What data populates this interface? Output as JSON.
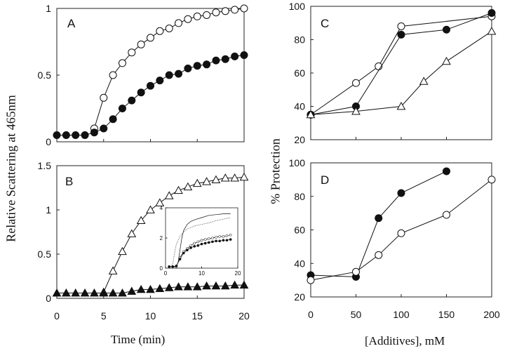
{
  "chart_data": [
    {
      "panel": "A",
      "type": "line",
      "xlim": [
        0,
        20
      ],
      "ylim": [
        0,
        1
      ],
      "xticks": [
        0,
        5,
        10,
        15,
        20
      ],
      "xticklabels": [],
      "yticks": [
        0,
        0.5,
        1
      ],
      "yticklabels": [
        "0",
        "0.5",
        "1"
      ],
      "series": [
        {
          "name": "open circles",
          "marker": "circle-open",
          "x": [
            4,
            5,
            6,
            7,
            8,
            9,
            10,
            11,
            12,
            13,
            14,
            15,
            16,
            17,
            18,
            19,
            20
          ],
          "y": [
            0.1,
            0.33,
            0.5,
            0.59,
            0.67,
            0.73,
            0.78,
            0.83,
            0.85,
            0.89,
            0.92,
            0.94,
            0.95,
            0.97,
            0.98,
            0.99,
            1.0
          ]
        },
        {
          "name": "filled circles",
          "marker": "circle-filled",
          "x": [
            0,
            1,
            2,
            3,
            4,
            5,
            6,
            7,
            8,
            9,
            10,
            11,
            12,
            13,
            14,
            15,
            16,
            17,
            18,
            19,
            20
          ],
          "y": [
            0.05,
            0.05,
            0.05,
            0.05,
            0.07,
            0.1,
            0.17,
            0.25,
            0.31,
            0.37,
            0.42,
            0.46,
            0.5,
            0.51,
            0.55,
            0.57,
            0.58,
            0.61,
            0.62,
            0.64,
            0.65
          ]
        }
      ]
    },
    {
      "panel": "B",
      "type": "line",
      "xlim": [
        0,
        20
      ],
      "ylim": [
        0,
        1.5
      ],
      "xticks": [
        0,
        5,
        10,
        15,
        20
      ],
      "xticklabels": [
        "0",
        "5",
        "10",
        "15",
        "20"
      ],
      "yticks": [
        0,
        0.5,
        1,
        1.5
      ],
      "yticklabels": [
        "0",
        "0.5",
        "1",
        "1.5"
      ],
      "series": [
        {
          "name": "open triangles",
          "marker": "triangle-open",
          "x": [
            5,
            6,
            7,
            8,
            9,
            10,
            11,
            12,
            13,
            14,
            15,
            16,
            17,
            18,
            19,
            20
          ],
          "y": [
            0.07,
            0.31,
            0.53,
            0.73,
            0.88,
            1.0,
            1.08,
            1.16,
            1.22,
            1.26,
            1.3,
            1.32,
            1.34,
            1.36,
            1.36,
            1.37
          ]
        },
        {
          "name": "filled triangles",
          "marker": "triangle-filled",
          "x": [
            0,
            1,
            2,
            3,
            4,
            5,
            6,
            7,
            8,
            9,
            10,
            11,
            12,
            13,
            14,
            15,
            16,
            17,
            18,
            19,
            20
          ],
          "y": [
            0.06,
            0.06,
            0.06,
            0.06,
            0.06,
            0.06,
            0.06,
            0.06,
            0.08,
            0.1,
            0.1,
            0.11,
            0.12,
            0.13,
            0.13,
            0.13,
            0.14,
            0.14,
            0.14,
            0.15,
            0.15
          ]
        }
      ],
      "inset": {
        "xlim": [
          0,
          20
        ],
        "ylim": [
          0,
          4
        ],
        "xticks": [
          0,
          10,
          20
        ],
        "xticklabels": [
          "0",
          "10",
          "20"
        ],
        "yticks": [
          0,
          2,
          4
        ],
        "yticklabels": [
          "0",
          "2",
          "4"
        ],
        "series": [
          {
            "name": "solid line",
            "marker": "none",
            "style": "solid",
            "x": [
              1,
              2,
              3,
              3.5,
              4,
              4.5,
              5,
              6,
              7,
              8,
              10,
              12,
              14,
              16,
              18
            ],
            "y": [
              0.1,
              0.1,
              0.1,
              0.4,
              1.2,
              2.0,
              2.5,
              2.9,
              3.1,
              3.2,
              3.35,
              3.5,
              3.55,
              3.6,
              3.6
            ]
          },
          {
            "name": "dotted line",
            "marker": "none",
            "style": "dotted",
            "x": [
              1,
              1.5,
              2,
              2.5,
              3,
              4,
              5,
              6,
              8,
              10,
              12,
              14,
              16,
              18
            ],
            "y": [
              0.1,
              0.1,
              0.3,
              1.0,
              1.6,
              2.1,
              2.4,
              2.6,
              2.8,
              2.9,
              3.0,
              3.15,
              3.25,
              3.35
            ]
          },
          {
            "name": "open circles",
            "marker": "circle-open",
            "style": "solid",
            "x": [
              1,
              2,
              3,
              4,
              5,
              6,
              7,
              8,
              9,
              10,
              11,
              12,
              13,
              14,
              15,
              16,
              17,
              18
            ],
            "y": [
              0.1,
              0.1,
              0.1,
              0.7,
              1.1,
              1.3,
              1.5,
              1.65,
              1.75,
              1.85,
              1.9,
              1.95,
              2.0,
              2.05,
              2.1,
              2.1,
              2.15,
              2.2
            ]
          },
          {
            "name": "filled circles",
            "marker": "circle-filled",
            "style": "solid",
            "x": [
              1,
              2,
              3,
              4,
              5,
              6,
              7,
              8,
              9,
              10,
              11,
              12,
              13,
              14,
              15,
              16,
              17,
              18
            ],
            "y": [
              0.1,
              0.1,
              0.15,
              0.6,
              1.0,
              1.2,
              1.35,
              1.45,
              1.5,
              1.6,
              1.65,
              1.7,
              1.75,
              1.8,
              1.8,
              1.85,
              1.85,
              1.9
            ]
          }
        ]
      }
    },
    {
      "panel": "C",
      "type": "line",
      "xlim": [
        0,
        200
      ],
      "ylim": [
        20,
        100
      ],
      "xticks": [
        0,
        50,
        100,
        150,
        200
      ],
      "xticklabels": [],
      "yticks": [
        20,
        40,
        60,
        80,
        100
      ],
      "yticklabels": [
        "20",
        "40",
        "60",
        "80",
        "100"
      ],
      "series": [
        {
          "name": "open circles",
          "marker": "circle-open",
          "x": [
            0,
            50,
            75,
            100,
            200
          ],
          "y": [
            35,
            54,
            64,
            88,
            94
          ]
        },
        {
          "name": "filled circles",
          "marker": "circle-filled",
          "x": [
            0,
            50,
            100,
            150,
            200
          ],
          "y": [
            35,
            40,
            83,
            86,
            96
          ]
        },
        {
          "name": "open triangles",
          "marker": "triangle-open",
          "x": [
            0,
            50,
            100,
            125,
            150,
            200
          ],
          "y": [
            35,
            37,
            40,
            55,
            67,
            85
          ]
        }
      ]
    },
    {
      "panel": "D",
      "type": "line",
      "xlim": [
        0,
        200
      ],
      "ylim": [
        20,
        100
      ],
      "xticks": [
        0,
        50,
        100,
        150,
        200
      ],
      "xticklabels": [
        "0",
        "50",
        "100",
        "150",
        "200"
      ],
      "yticks": [
        20,
        40,
        60,
        80,
        100
      ],
      "yticklabels": [
        "20",
        "40",
        "60",
        "80",
        "100"
      ],
      "series": [
        {
          "name": "filled circles",
          "marker": "circle-filled",
          "x": [
            0,
            50,
            75,
            100,
            150
          ],
          "y": [
            33,
            32,
            67,
            82,
            95
          ]
        },
        {
          "name": "open circles",
          "marker": "circle-open",
          "x": [
            0,
            50,
            75,
            100,
            150,
            200
          ],
          "y": [
            30,
            35,
            45,
            58,
            69,
            90
          ]
        }
      ]
    }
  ],
  "labels": {
    "left_ylabel": "Relative Scattering at 465nm",
    "left_xlabel": "Time (min)",
    "right_ylabel": "% Protection",
    "right_xlabel": "[Additives], mM",
    "panel_a": "A",
    "panel_b": "B",
    "panel_c": "C",
    "panel_d": "D"
  }
}
